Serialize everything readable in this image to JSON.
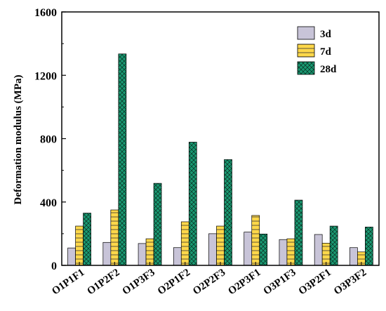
{
  "chart_data": {
    "type": "bar",
    "categories": [
      "O1P1F1",
      "O1P2F2",
      "O1P3F3",
      "O2P1F2",
      "O2P2F3",
      "O2P3F1",
      "O3P1F3",
      "O3P2F1",
      "O3P3F2"
    ],
    "series": [
      {
        "name": "3d",
        "color": "#c8c4d8",
        "pattern": "solid",
        "values": [
          110,
          145,
          138,
          112,
          200,
          210,
          163,
          195,
          112
        ]
      },
      {
        "name": "7d",
        "color": "#ffd84a",
        "pattern": "horizontal-lines",
        "values": [
          248,
          350,
          168,
          275,
          248,
          315,
          168,
          140,
          85
        ]
      },
      {
        "name": "28d",
        "color": "#1a9b73",
        "pattern": "crosshatch",
        "values": [
          330,
          1335,
          518,
          778,
          668,
          198,
          412,
          248,
          242
        ]
      }
    ],
    "ylabel": "Deformation modulus (MPa)",
    "xlabel": "",
    "ylim": [
      0,
      1600
    ],
    "yticks": [
      0,
      400,
      800,
      1200,
      1600
    ],
    "grid": false,
    "legend_position": "top-right"
  }
}
